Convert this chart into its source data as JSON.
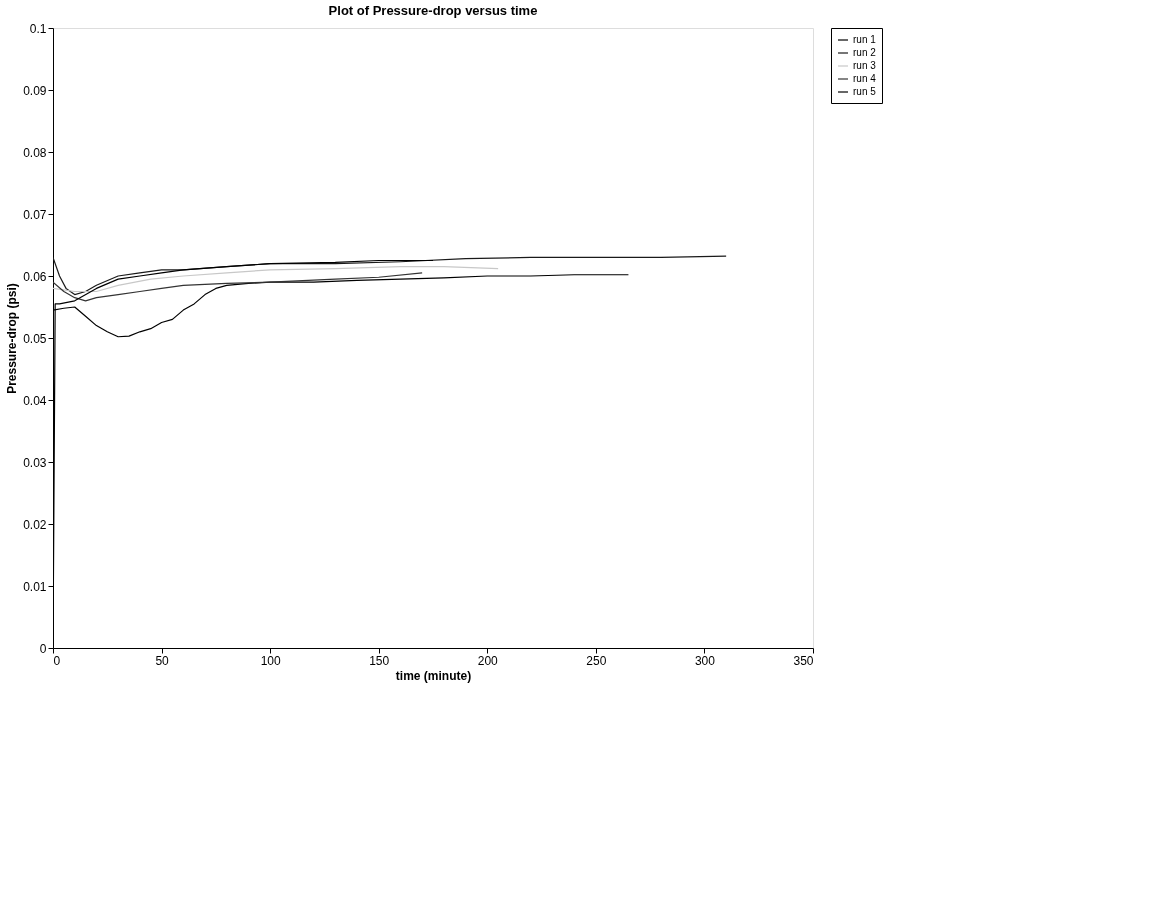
{
  "chart_data": {
    "type": "line",
    "title": "Plot of Pressure-drop versus time",
    "xlabel": "time (minute)",
    "ylabel": "Pressure-drop (psi)",
    "xlim": [
      0,
      350
    ],
    "xticks": [
      0,
      50,
      100,
      150,
      200,
      250,
      300,
      350
    ],
    "ylim": [
      0,
      0.1
    ],
    "yticks": [
      0,
      0.01,
      0.02,
      0.03,
      0.04,
      0.05,
      0.06,
      0.07,
      0.08,
      0.09,
      0.1
    ],
    "grid": false,
    "legend": "right",
    "marker": "none",
    "line_style": "solid",
    "series": [
      {
        "name": "run 1",
        "color": "#000000",
        "x": [
          0,
          5,
          10,
          15,
          20,
          25,
          30,
          35,
          40,
          45,
          50,
          55,
          60,
          65,
          70,
          75,
          80,
          90,
          100,
          120,
          140,
          160,
          180,
          200,
          220,
          240,
          265
        ],
        "values": [
          0.0545,
          0.0548,
          0.055,
          0.0535,
          0.052,
          0.051,
          0.0502,
          0.0503,
          0.051,
          0.0515,
          0.0525,
          0.053,
          0.0545,
          0.0555,
          0.057,
          0.058,
          0.0585,
          0.0588,
          0.059,
          0.059,
          0.0593,
          0.0595,
          0.0597,
          0.06,
          0.06,
          0.0602,
          0.0602
        ]
      },
      {
        "name": "run 2",
        "color": "#1a1a1a",
        "x": [
          0,
          3,
          6,
          10,
          15,
          20,
          30,
          40,
          50,
          60,
          80,
          100,
          130,
          160,
          190,
          220,
          250,
          280,
          310
        ],
        "values": [
          0.063,
          0.06,
          0.058,
          0.057,
          0.0575,
          0.0585,
          0.06,
          0.0605,
          0.061,
          0.061,
          0.0615,
          0.062,
          0.062,
          0.0623,
          0.0628,
          0.063,
          0.063,
          0.063,
          0.0632
        ]
      },
      {
        "name": "run 3",
        "color": "#c8c8c8",
        "x": [
          0,
          10,
          20,
          30,
          45,
          60,
          80,
          100,
          130,
          160,
          180,
          205
        ],
        "values": [
          0.058,
          0.0575,
          0.0575,
          0.0585,
          0.0595,
          0.06,
          0.0605,
          0.061,
          0.0612,
          0.0615,
          0.0615,
          0.0612
        ]
      },
      {
        "name": "run 4",
        "color": "#333333",
        "x": [
          0,
          5,
          10,
          15,
          20,
          30,
          40,
          50,
          60,
          80,
          100,
          130,
          150,
          170
        ],
        "values": [
          0.059,
          0.0575,
          0.0565,
          0.056,
          0.0565,
          0.057,
          0.0575,
          0.058,
          0.0585,
          0.0588,
          0.059,
          0.0595,
          0.0598,
          0.0605
        ]
      },
      {
        "name": "run 5",
        "color": "#000000",
        "x": [
          0,
          1,
          3,
          10,
          20,
          30,
          40,
          50,
          60,
          80,
          100,
          130,
          150,
          175
        ],
        "values": [
          0,
          0.0555,
          0.0555,
          0.056,
          0.058,
          0.0595,
          0.06,
          0.0605,
          0.061,
          0.0615,
          0.062,
          0.0622,
          0.0625,
          0.0625
        ]
      }
    ]
  }
}
